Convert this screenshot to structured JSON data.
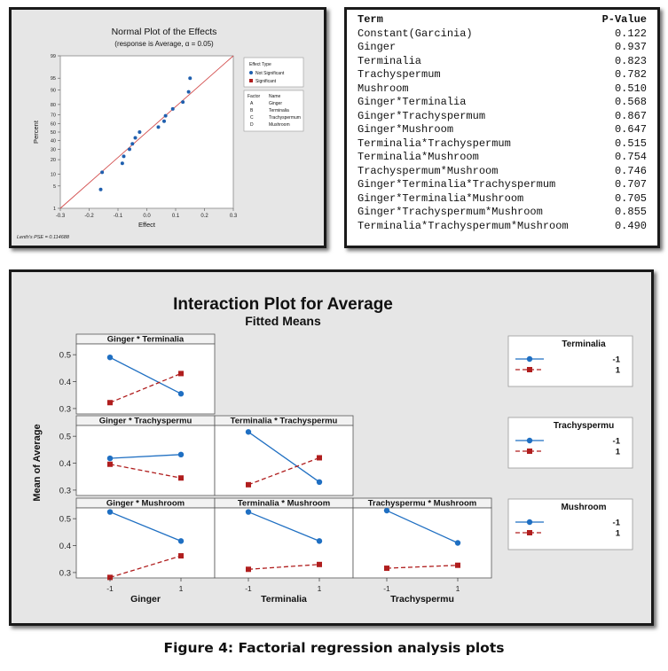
{
  "chart_data": [
    {
      "type": "scatter",
      "title": "Normal Plot of the Effects",
      "subtitle": "(response is Average, α = 0.05)",
      "xlabel": "Effect",
      "ylabel": "Percent",
      "xlim": [
        -0.3,
        0.3
      ],
      "xticks": [
        "-0.3",
        "-0.2",
        "-0.1",
        "0.0",
        "0.1",
        "0.2",
        "0.3"
      ],
      "yticks": [
        "1",
        "5",
        "10",
        "20",
        "30",
        "40",
        "50",
        "60",
        "70",
        "80",
        "90",
        "95",
        "99"
      ],
      "legend_title": "Effect Type",
      "legend_items": [
        {
          "label": "Not Significant",
          "color": "#1f5fae",
          "marker": "circle"
        },
        {
          "label": "Significant",
          "color": "#b01e1e",
          "marker": "square"
        }
      ],
      "factor_header": {
        "factor": "Factor",
        "name": "Name"
      },
      "factors": [
        {
          "code": "A",
          "name": "Ginger"
        },
        {
          "code": "B",
          "name": "Terminalia"
        },
        {
          "code": "C",
          "name": "Trachyspermum"
        },
        {
          "code": "D",
          "name": "Mushroom"
        }
      ],
      "footnote": "Lenth's PSE = 0.114688",
      "points": [
        {
          "effect": -0.16,
          "percent": 4
        },
        {
          "effect": -0.155,
          "percent": 11
        },
        {
          "effect": -0.085,
          "percent": 17
        },
        {
          "effect": -0.08,
          "percent": 23
        },
        {
          "effect": -0.06,
          "percent": 30
        },
        {
          "effect": -0.05,
          "percent": 36
        },
        {
          "effect": -0.04,
          "percent": 43
        },
        {
          "effect": -0.025,
          "percent": 50
        },
        {
          "effect": 0.04,
          "percent": 56
        },
        {
          "effect": 0.06,
          "percent": 63
        },
        {
          "effect": 0.065,
          "percent": 69
        },
        {
          "effect": 0.09,
          "percent": 76
        },
        {
          "effect": 0.125,
          "percent": 82
        },
        {
          "effect": 0.145,
          "percent": 89
        },
        {
          "effect": 0.15,
          "percent": 95
        }
      ],
      "reference_line": {
        "effect_at_p1": -0.3,
        "effect_at_p99": 0.3
      }
    },
    {
      "type": "table",
      "columns": [
        "Term",
        "P-Value"
      ],
      "rows": [
        [
          "Constant(Garcinia)",
          "0.122"
        ],
        [
          "Ginger",
          "0.937"
        ],
        [
          "Terminalia",
          "0.823"
        ],
        [
          "Trachyspermum",
          "0.782"
        ],
        [
          "Mushroom",
          "0.510"
        ],
        [
          "Ginger*Terminalia",
          "0.568"
        ],
        [
          "Ginger*Trachyspermum",
          "0.867"
        ],
        [
          "Ginger*Mushroom",
          "0.647"
        ],
        [
          "Terminalia*Trachyspermum",
          "0.515"
        ],
        [
          "Terminalia*Mushroom",
          "0.754"
        ],
        [
          "Trachyspermum*Mushroom",
          "0.746"
        ],
        [
          "Ginger*Terminalia*Trachyspermum",
          "0.707"
        ],
        [
          "Ginger*Terminalia*Mushroom",
          "0.705"
        ],
        [
          "Ginger*Trachyspermum*Mushroom",
          "0.855"
        ],
        [
          "Terminalia*Trachyspermum*Mushroom",
          "0.490"
        ]
      ]
    },
    {
      "type": "line",
      "title": "Interaction Plot for Average",
      "subtitle": "Fitted Means",
      "ylabel": "Mean of Average",
      "ylim": [
        0.28,
        0.54
      ],
      "yticks": [
        "0.3",
        "0.4",
        "0.5"
      ],
      "xticks": [
        "-1",
        "1"
      ],
      "x_axis_labels": [
        "Ginger",
        "Terminalia",
        "Trachyspermu"
      ],
      "series_colors": {
        "-1": "#1f6fc2",
        "1": "#b01e1e"
      },
      "legends": [
        {
          "title": "Terminalia",
          "items": [
            "-1",
            "1"
          ]
        },
        {
          "title": "Trachyspermu",
          "items": [
            "-1",
            "1"
          ]
        },
        {
          "title": "Mushroom",
          "items": [
            "-1",
            "1"
          ]
        }
      ],
      "panels": [
        {
          "title": "Ginger * Terminalia",
          "row": 0,
          "col": 0,
          "series": [
            {
              "name": "-1",
              "values": [
                0.49,
                0.355
              ]
            },
            {
              "name": "1",
              "values": [
                0.322,
                0.43
              ]
            }
          ]
        },
        {
          "title": "Ginger * Trachyspermu",
          "row": 1,
          "col": 0,
          "series": [
            {
              "name": "-1",
              "values": [
                0.418,
                0.432
              ]
            },
            {
              "name": "1",
              "values": [
                0.396,
                0.345
              ]
            }
          ]
        },
        {
          "title": "Terminalia * Trachyspermu",
          "row": 1,
          "col": 1,
          "series": [
            {
              "name": "-1",
              "values": [
                0.516,
                0.33
              ]
            },
            {
              "name": "1",
              "values": [
                0.32,
                0.42
              ]
            }
          ]
        },
        {
          "title": "Ginger * Mushroom",
          "row": 2,
          "col": 0,
          "series": [
            {
              "name": "-1",
              "values": [
                0.525,
                0.417
              ]
            },
            {
              "name": "1",
              "values": [
                0.282,
                0.362
              ]
            }
          ]
        },
        {
          "title": "Terminalia * Mushroom",
          "row": 2,
          "col": 1,
          "series": [
            {
              "name": "-1",
              "values": [
                0.525,
                0.417
              ]
            },
            {
              "name": "1",
              "values": [
                0.312,
                0.33
              ]
            }
          ]
        },
        {
          "title": "Trachyspermu * Mushroom",
          "row": 2,
          "col": 2,
          "series": [
            {
              "name": "-1",
              "values": [
                0.53,
                0.41
              ]
            },
            {
              "name": "1",
              "values": [
                0.316,
                0.327
              ]
            }
          ]
        }
      ]
    }
  ],
  "caption": "Figure 4: Factorial regression analysis plots"
}
